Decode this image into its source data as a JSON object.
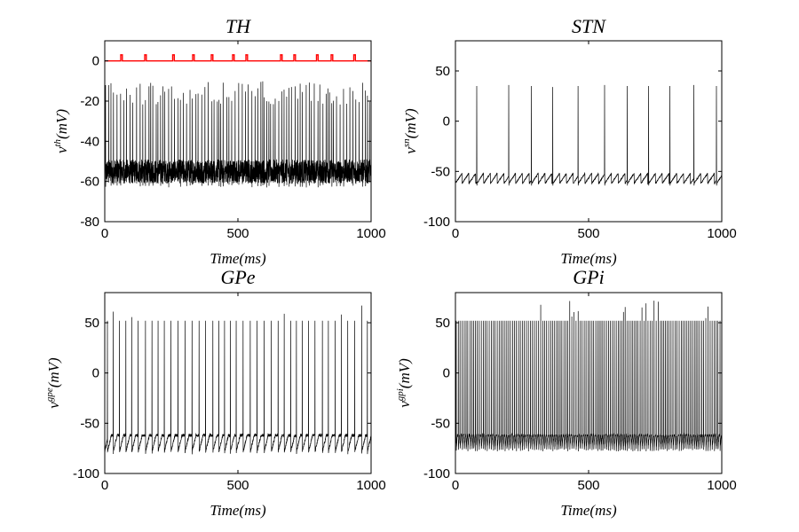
{
  "chart_data": [
    {
      "type": "line",
      "title": "TH",
      "xlabel": "Time(ms)",
      "ylabel_base": "v",
      "ylabel_sup": "th",
      "ylabel_rest": "(mV)",
      "xlim": [
        0,
        1000
      ],
      "ylim": [
        -80,
        10
      ],
      "xticks": [
        0,
        500,
        1000
      ],
      "yticks": [
        0,
        -20,
        -40,
        -60,
        -80
      ],
      "trace": {
        "color": "#000000",
        "rest": -55,
        "noise": 6,
        "peak": -10,
        "peak_jitter": 6,
        "trough": -60,
        "spike_times_interval": 10
      },
      "stimulus": {
        "color": "#ff0000",
        "baseline": 0,
        "amplitude": 3,
        "pulse_width": 6,
        "pulse_times": [
          60,
          150,
          255,
          330,
          400,
          480,
          530,
          660,
          710,
          795,
          850,
          935
        ]
      }
    },
    {
      "type": "line",
      "title": "STN",
      "xlabel": "Time(ms)",
      "ylabel_base": "v",
      "ylabel_sup": "sn",
      "ylabel_rest": "(mV)",
      "xlim": [
        0,
        1000
      ],
      "ylim": [
        -100,
        80
      ],
      "xticks": [
        0,
        500,
        1000
      ],
      "yticks": [
        50,
        0,
        -50,
        -100
      ],
      "trace": {
        "color": "#000000",
        "rest": -62,
        "subthreshold_max": -52,
        "spike_peaks": [
          35,
          36,
          35,
          34,
          35,
          36,
          35,
          35,
          35,
          36,
          35
        ],
        "spike_times": [
          80,
          200,
          285,
          365,
          460,
          560,
          645,
          725,
          805,
          895,
          980
        ]
      }
    },
    {
      "type": "line",
      "title": "GPe",
      "xlabel": "Time(ms)",
      "ylabel_base": "v",
      "ylabel_sup": "gpe",
      "ylabel_rest": "(mV)",
      "xlim": [
        0,
        1000
      ],
      "ylim": [
        -100,
        80
      ],
      "xticks": [
        0,
        500,
        1000
      ],
      "yticks": [
        50,
        0,
        -50,
        -100
      ],
      "trace": {
        "color": "#000000",
        "rest": -78,
        "subthreshold_max": -62,
        "peak": 52,
        "spike_interval": 24
      }
    },
    {
      "type": "line",
      "title": "GPi",
      "xlabel": "Time(ms)",
      "ylabel_base": "v",
      "ylabel_sup": "gpi",
      "ylabel_rest": "(mV)",
      "xlim": [
        0,
        1000
      ],
      "ylim": [
        -100,
        80
      ],
      "xticks": [
        0,
        500,
        1000
      ],
      "yticks": [
        50,
        0,
        -50,
        -100
      ],
      "trace": {
        "color": "#000000",
        "rest": -75,
        "subthreshold_max": -62,
        "peak": 52,
        "spike_interval": 7
      }
    }
  ]
}
